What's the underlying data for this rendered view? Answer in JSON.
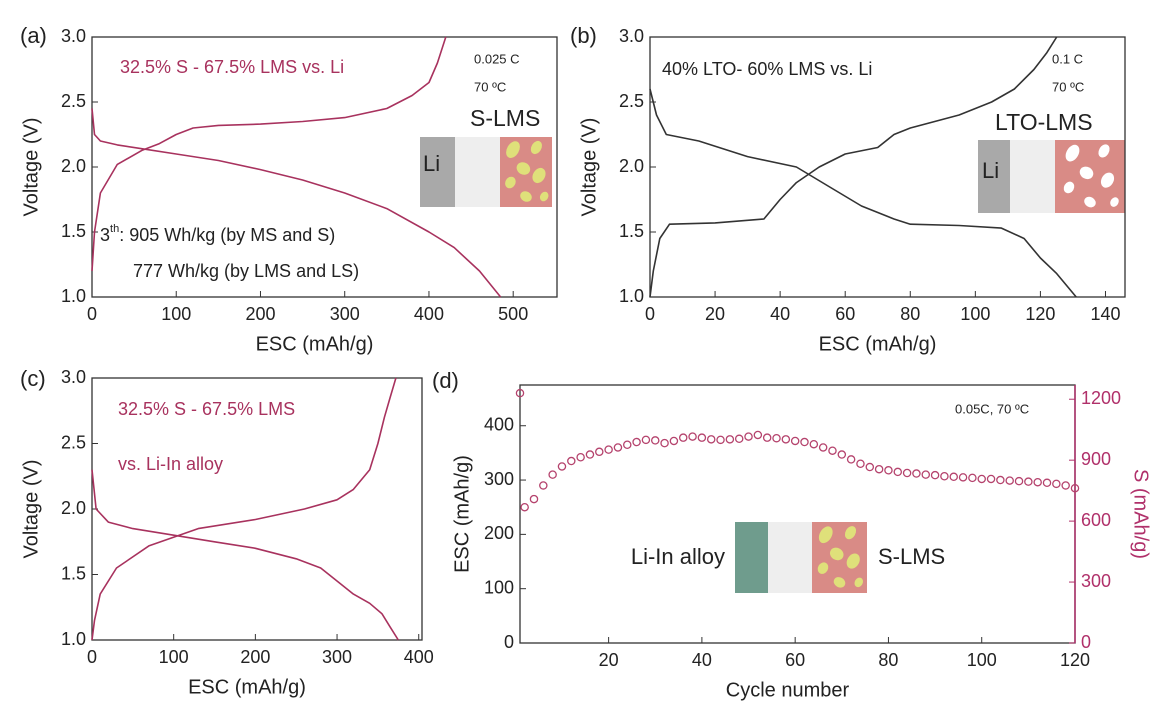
{
  "chart_data": [
    {
      "type": "line",
      "label": "(a)",
      "xlabel": "ESC (mAh/g)",
      "ylabel": "Voltage (V)",
      "xlim": [
        0,
        552
      ],
      "xticks": [
        0,
        100,
        200,
        300,
        400,
        500
      ],
      "ylim": [
        1,
        3
      ],
      "yticks": [
        {
          "value": 1,
          "label": "1.0"
        },
        1.5,
        {
          "value": 2,
          "label": "2.0"
        },
        2.5,
        {
          "value": 3,
          "label": "3.0"
        }
      ],
      "series": [
        {
          "color": "#a8325e",
          "x": [
            0,
            3,
            10,
            30,
            60,
            100,
            150,
            200,
            250,
            300,
            350,
            400,
            430,
            460,
            485
          ],
          "values": [
            2.45,
            2.25,
            2.2,
            2.17,
            2.14,
            2.1,
            2.05,
            1.98,
            1.9,
            1.8,
            1.68,
            1.5,
            1.38,
            1.2,
            1.0
          ]
        },
        {
          "color": "#a8325e",
          "x": [
            0,
            3,
            10,
            30,
            60,
            80,
            100,
            120,
            150,
            200,
            250,
            300,
            350,
            380,
            400,
            410,
            420
          ],
          "values": [
            1.2,
            1.5,
            1.8,
            2.02,
            2.13,
            2.18,
            2.25,
            2.3,
            2.32,
            2.33,
            2.35,
            2.38,
            2.45,
            2.55,
            2.65,
            2.8,
            3.0
          ]
        }
      ],
      "annotations": [
        "32.5% S - 67.5% LMS vs. Li",
        "0.025 C",
        "70 ºC",
        "S-LMS",
        "Li",
        {
          "base": "3",
          "sup": "th",
          "rest": ": 905 Wh/kg (by MS and S)"
        },
        "777 Wh/kg (by LMS and LS)"
      ]
    },
    {
      "type": "line",
      "label": "(b)",
      "xlabel": "ESC (mAh/g)",
      "ylabel": "Voltage (V)",
      "xlim": [
        0,
        146
      ],
      "xticks": [
        0,
        20,
        40,
        60,
        80,
        100,
        120,
        140
      ],
      "ylim": [
        1,
        3
      ],
      "yticks": [
        {
          "value": 1,
          "label": "1.0"
        },
        1.5,
        {
          "value": 2,
          "label": "2.0"
        },
        2.5,
        {
          "value": 3,
          "label": "3.0"
        }
      ],
      "series": [
        {
          "color": "#333333",
          "x": [
            0,
            2,
            5,
            15,
            30,
            45,
            55,
            65,
            75,
            80,
            95,
            108,
            115,
            120,
            125,
            131
          ],
          "values": [
            2.6,
            2.4,
            2.25,
            2.2,
            2.08,
            2.0,
            1.85,
            1.7,
            1.6,
            1.56,
            1.55,
            1.53,
            1.45,
            1.3,
            1.18,
            1.0
          ]
        },
        {
          "color": "#333333",
          "x": [
            0,
            1,
            3,
            6,
            20,
            35,
            40,
            45,
            52,
            60,
            70,
            75,
            80,
            95,
            105,
            112,
            118,
            122,
            125
          ],
          "values": [
            1.0,
            1.2,
            1.45,
            1.56,
            1.57,
            1.6,
            1.75,
            1.88,
            2.0,
            2.1,
            2.15,
            2.25,
            2.3,
            2.4,
            2.5,
            2.6,
            2.75,
            2.88,
            3.0
          ]
        }
      ],
      "annotations": [
        "40% LTO- 60% LMS vs. Li",
        "0.1 C",
        "70 ºC",
        "LTO-LMS",
        "Li"
      ]
    },
    {
      "type": "line",
      "label": "(c)",
      "xlabel": "ESC (mAh/g)",
      "ylabel": "Voltage (V)",
      "xlim": [
        0,
        404
      ],
      "xticks": [
        0,
        100,
        200,
        300,
        400
      ],
      "ylim": [
        1,
        3
      ],
      "yticks": [
        {
          "value": 1,
          "label": "1.0"
        },
        1.5,
        {
          "value": 2,
          "label": "2.0"
        },
        2.5,
        {
          "value": 3,
          "label": "3.0"
        }
      ],
      "series": [
        {
          "color": "#a8325e",
          "x": [
            0,
            5,
            20,
            50,
            100,
            150,
            200,
            250,
            280,
            300,
            320,
            340,
            355,
            365,
            375
          ],
          "values": [
            2.3,
            2.0,
            1.9,
            1.85,
            1.8,
            1.75,
            1.7,
            1.62,
            1.55,
            1.45,
            1.35,
            1.28,
            1.2,
            1.1,
            1.0
          ]
        },
        {
          "color": "#a8325e",
          "x": [
            0,
            3,
            10,
            30,
            70,
            130,
            200,
            260,
            300,
            320,
            340,
            350,
            358,
            365,
            372
          ],
          "values": [
            1.0,
            1.15,
            1.35,
            1.55,
            1.72,
            1.85,
            1.92,
            2.0,
            2.07,
            2.15,
            2.3,
            2.5,
            2.7,
            2.85,
            3.0
          ]
        }
      ],
      "annotations": [
        "32.5% S - 67.5% LMS",
        "vs. Li-In alloy"
      ]
    },
    {
      "type": "scatter",
      "label": "(d)",
      "xlabel": "Cycle number",
      "ylabel": "ESC (mAh/g)",
      "y2label": "S (mAh/g)",
      "y2_color": "#b0306a",
      "xlim": [
        1,
        120
      ],
      "xticks": [
        20,
        40,
        60,
        80,
        100,
        120
      ],
      "ylim": [
        0,
        475
      ],
      "yticks": [
        0,
        100,
        200,
        300,
        400
      ],
      "y2lim": [
        0,
        1270
      ],
      "y2ticks": [
        0,
        300,
        600,
        900,
        1200
      ],
      "color": "#b5436d",
      "x": [
        1,
        2,
        4,
        6,
        8,
        10,
        12,
        14,
        16,
        18,
        20,
        22,
        24,
        26,
        28,
        30,
        32,
        34,
        36,
        38,
        40,
        42,
        44,
        46,
        48,
        50,
        52,
        54,
        56,
        58,
        60,
        62,
        64,
        66,
        68,
        70,
        72,
        74,
        76,
        78,
        80,
        82,
        84,
        86,
        88,
        90,
        92,
        94,
        96,
        98,
        100,
        102,
        104,
        106,
        108,
        110,
        112,
        114,
        116,
        118,
        120
      ],
      "values": [
        460,
        250,
        265,
        290,
        310,
        325,
        335,
        342,
        347,
        352,
        356,
        360,
        365,
        370,
        374,
        373,
        368,
        372,
        378,
        380,
        378,
        375,
        374,
        375,
        376,
        380,
        383,
        378,
        377,
        375,
        372,
        370,
        366,
        360,
        354,
        347,
        338,
        330,
        324,
        320,
        318,
        315,
        313,
        312,
        310,
        309,
        307,
        306,
        305,
        304,
        302,
        302,
        300,
        299,
        298,
        297,
        296,
        295,
        293,
        290,
        285
      ],
      "annotations": [
        "0.05C, 70 ºC",
        "Li-In alloy",
        "S-LMS"
      ]
    }
  ]
}
